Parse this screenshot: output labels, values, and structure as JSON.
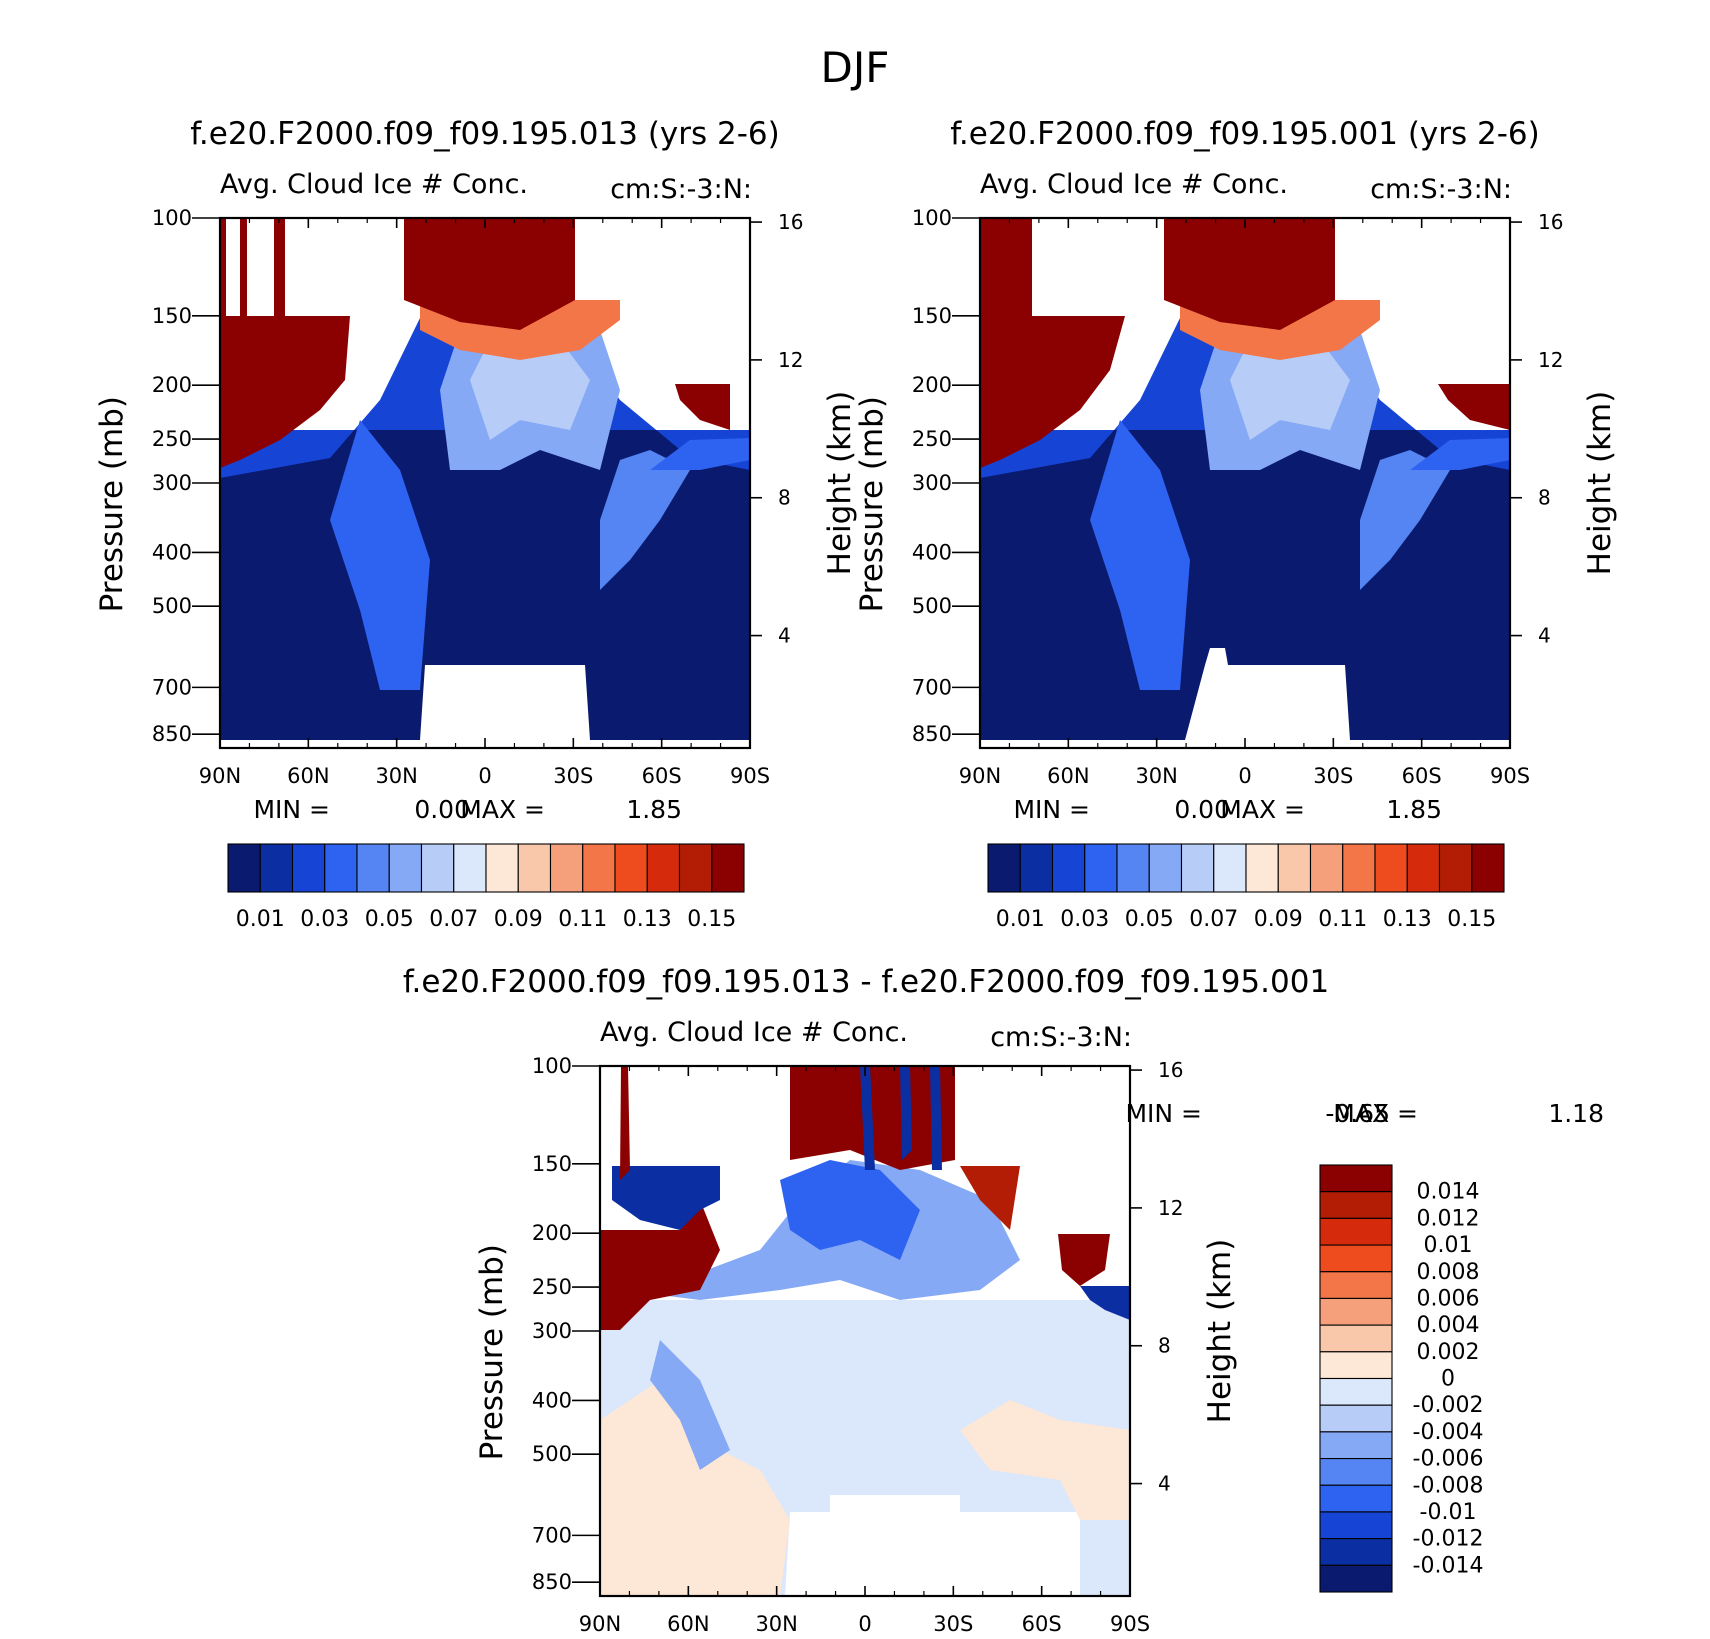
{
  "figure": {
    "title": "DJF"
  },
  "chart_data": [
    {
      "id": "panel-013",
      "type": "heatmap",
      "case_title": "f.e20.F2000.f09_f09.195.013 (yrs 2-6)",
      "left_string": "Avg. Cloud Ice # Conc.",
      "right_string": "cm:S:-3:N:",
      "ylabel": "Pressure (mb)",
      "ylabel_right": "Height (km)",
      "xticks": [
        "90N",
        "60N",
        "30N",
        "0",
        "30S",
        "60S",
        "90S"
      ],
      "yticks": [
        "100",
        "150",
        "200",
        "250",
        "300",
        "400",
        "500",
        "700",
        "850"
      ],
      "yticks_right": [
        "16",
        "12",
        "8",
        "4"
      ],
      "xlim": [
        90,
        -90
      ],
      "ylim_mb": [
        100,
        900
      ],
      "min_label": "MIN =",
      "min_value": "0.00",
      "max_label": "MAX =",
      "max_value": "1.85",
      "colorbar_labels": [
        "0.01",
        "0.03",
        "0.05",
        "0.07",
        "0.09",
        "0.11",
        "0.13",
        "0.15"
      ],
      "colorbar_levels": [
        0.01,
        0.02,
        0.03,
        0.04,
        0.05,
        0.06,
        0.07,
        0.08,
        0.09,
        0.1,
        0.11,
        0.12,
        0.13,
        0.14,
        0.15
      ],
      "colors": [
        "#0a1a6e",
        "#0b2fa3",
        "#1645d6",
        "#2e62f0",
        "#5585f2",
        "#86a9f5",
        "#b7cdf7",
        "#dbe7fb",
        "#fde7d6",
        "#f9c7aa",
        "#f5a07a",
        "#f27647",
        "#ee4b1f",
        "#d52b0c",
        "#b31d06",
        "#8b0000"
      ]
    },
    {
      "id": "panel-001",
      "type": "heatmap",
      "case_title": "f.e20.F2000.f09_f09.195.001 (yrs 2-6)",
      "left_string": "Avg. Cloud Ice # Conc.",
      "right_string": "cm:S:-3:N:",
      "ylabel": "Pressure (mb)",
      "ylabel_right": "Height (km)",
      "xticks": [
        "90N",
        "60N",
        "30N",
        "0",
        "30S",
        "60S",
        "90S"
      ],
      "yticks": [
        "100",
        "150",
        "200",
        "250",
        "300",
        "400",
        "500",
        "700",
        "850"
      ],
      "yticks_right": [
        "16",
        "12",
        "8",
        "4"
      ],
      "xlim": [
        90,
        -90
      ],
      "ylim_mb": [
        100,
        900
      ],
      "min_label": "MIN =",
      "min_value": "0.00",
      "max_label": "MAX =",
      "max_value": "1.85",
      "colorbar_labels": [
        "0.01",
        "0.03",
        "0.05",
        "0.07",
        "0.09",
        "0.11",
        "0.13",
        "0.15"
      ],
      "colorbar_levels": [
        0.01,
        0.02,
        0.03,
        0.04,
        0.05,
        0.06,
        0.07,
        0.08,
        0.09,
        0.1,
        0.11,
        0.12,
        0.13,
        0.14,
        0.15
      ],
      "colors": [
        "#0a1a6e",
        "#0b2fa3",
        "#1645d6",
        "#2e62f0",
        "#5585f2",
        "#86a9f5",
        "#b7cdf7",
        "#dbe7fb",
        "#fde7d6",
        "#f9c7aa",
        "#f5a07a",
        "#f27647",
        "#ee4b1f",
        "#d52b0c",
        "#b31d06",
        "#8b0000"
      ]
    },
    {
      "id": "panel-diff",
      "type": "heatmap",
      "case_title": "f.e20.F2000.f09_f09.195.013 - f.e20.F2000.f09_f09.195.001",
      "left_string": "Avg. Cloud Ice # Conc.",
      "right_string": "cm:S:-3:N:",
      "ylabel": "Pressure (mb)",
      "ylabel_right": "Height (km)",
      "xticks": [
        "90N",
        "60N",
        "30N",
        "0",
        "30S",
        "60S",
        "90S"
      ],
      "yticks": [
        "100",
        "150",
        "200",
        "250",
        "300",
        "400",
        "500",
        "700",
        "850"
      ],
      "yticks_right": [
        "16",
        "12",
        "8",
        "4"
      ],
      "xlim": [
        90,
        -90
      ],
      "ylim_mb": [
        100,
        900
      ],
      "min_label": "MIN =",
      "min_value": "-0.65",
      "max_label": "MAX =",
      "max_value": "1.18",
      "colorbar_labels": [
        "0.014",
        "0.012",
        "0.01",
        "0.008",
        "0.006",
        "0.004",
        "0.002",
        "0",
        "-0.002",
        "-0.004",
        "-0.006",
        "-0.008",
        "-0.01",
        "-0.012",
        "-0.014"
      ],
      "colors": [
        "#8b0000",
        "#b31d06",
        "#d52b0c",
        "#ee4b1f",
        "#f27647",
        "#f5a07a",
        "#f9c7aa",
        "#fde7d6",
        "#dbe7fb",
        "#b7cdf7",
        "#86a9f5",
        "#5585f2",
        "#2e62f0",
        "#1645d6",
        "#0b2fa3",
        "#0a1a6e"
      ]
    }
  ]
}
